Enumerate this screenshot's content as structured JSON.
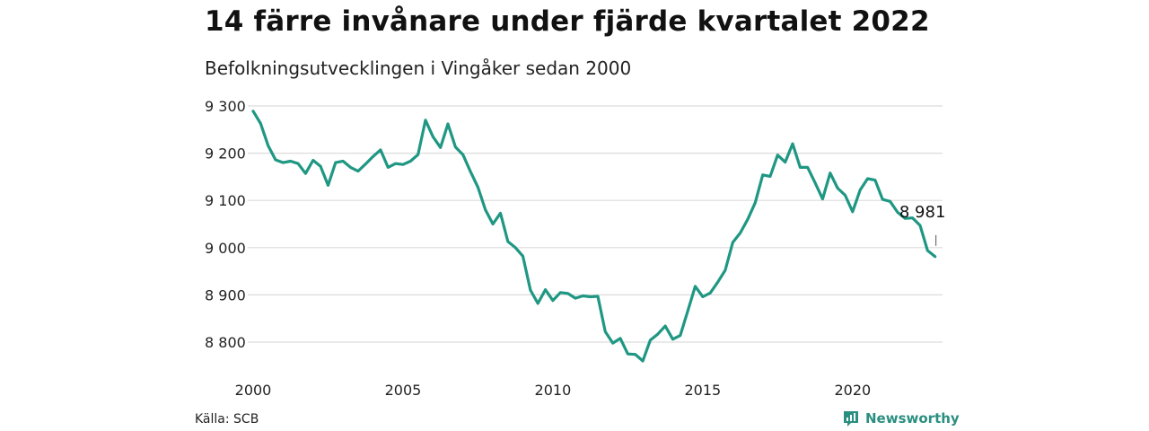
{
  "header": {
    "title": "14 färre invånare under fjärde kvartalet 2022",
    "subtitle": "Befolkningsutvecklingen i Vingåker sedan 2000"
  },
  "footer": {
    "source": "Källa: SCB",
    "brand": "Newsworthy",
    "brand_icon": "bar-chart-bubble-icon"
  },
  "colors": {
    "line": "#1f9783",
    "grid": "#dcdcdc",
    "brand": "#2a8f80"
  },
  "chart_data": {
    "type": "line",
    "title": "14 färre invånare under fjärde kvartalet 2022",
    "subtitle": "Befolkningsutvecklingen i Vingåker sedan 2000",
    "xlabel": "",
    "ylabel": "",
    "xlim": [
      2000,
      2023
    ],
    "ylim": [
      8760,
      9300
    ],
    "x_ticks": [
      2000,
      2005,
      2010,
      2015,
      2020
    ],
    "y_ticks": [
      9300,
      9200,
      9100,
      9000,
      8900,
      8800
    ],
    "y_tick_labels": [
      "9 300",
      "9 200",
      "9 100",
      "9 000",
      "8 900",
      "8 800"
    ],
    "grid": true,
    "annotation": {
      "text": "8 981",
      "x": 2022.75,
      "y": 8981
    },
    "series": [
      {
        "x": [
          2000.0,
          2000.25,
          2000.5,
          2000.75,
          2001.0,
          2001.25,
          2001.5,
          2001.75,
          2002.0,
          2002.25,
          2002.5,
          2002.75,
          2003.0,
          2003.25,
          2003.5,
          2003.75,
          2004.0,
          2004.25,
          2004.5,
          2004.75,
          2005.0,
          2005.25,
          2005.5,
          2005.75,
          2006.0,
          2006.25,
          2006.5,
          2006.75,
          2007.0,
          2007.25,
          2007.5,
          2007.75,
          2008.0,
          2008.25,
          2008.5,
          2008.75,
          2009.0,
          2009.25,
          2009.5,
          2009.75,
          2010.0,
          2010.25,
          2010.5,
          2010.75,
          2011.0,
          2011.25,
          2011.5,
          2011.75,
          2012.0,
          2012.25,
          2012.5,
          2012.75,
          2013.0,
          2013.25,
          2013.5,
          2013.75,
          2014.0,
          2014.25,
          2014.5,
          2014.75,
          2015.0,
          2015.25,
          2015.5,
          2015.75,
          2016.0,
          2016.25,
          2016.5,
          2016.75,
          2017.0,
          2017.25,
          2017.5,
          2017.75,
          2018.0,
          2018.25,
          2018.5,
          2018.75,
          2019.0,
          2019.25,
          2019.5,
          2019.75,
          2020.0,
          2020.25,
          2020.5,
          2020.75,
          2021.0,
          2021.25,
          2021.5,
          2021.75,
          2022.0,
          2022.25,
          2022.5,
          2022.75
        ],
        "values": [
          9289,
          9263,
          9216,
          9186,
          9180,
          9183,
          9178,
          9157,
          9185,
          9172,
          9132,
          9180,
          9183,
          9170,
          9162,
          9177,
          9193,
          9207,
          9170,
          9178,
          9176,
          9183,
          9197,
          9270,
          9235,
          9212,
          9262,
          9213,
          9197,
          9161,
          9128,
          9080,
          9050,
          9073,
          9013,
          9000,
          8982,
          8910,
          8882,
          8911,
          8888,
          8905,
          8903,
          8893,
          8898,
          8896,
          8897,
          8822,
          8798,
          8808,
          8775,
          8774,
          8760,
          8804,
          8817,
          8834,
          8806,
          8814,
          8866,
          8918,
          8896,
          8904,
          8927,
          8952,
          9011,
          9031,
          9060,
          9095,
          9154,
          9151,
          9196,
          9181,
          9220,
          9170,
          9170,
          9137,
          9103,
          9158,
          9126,
          9111,
          9076,
          9122,
          9146,
          9143,
          9102,
          9098,
          9075,
          9062,
          9063,
          9047,
          8994,
          8981
        ]
      }
    ]
  }
}
